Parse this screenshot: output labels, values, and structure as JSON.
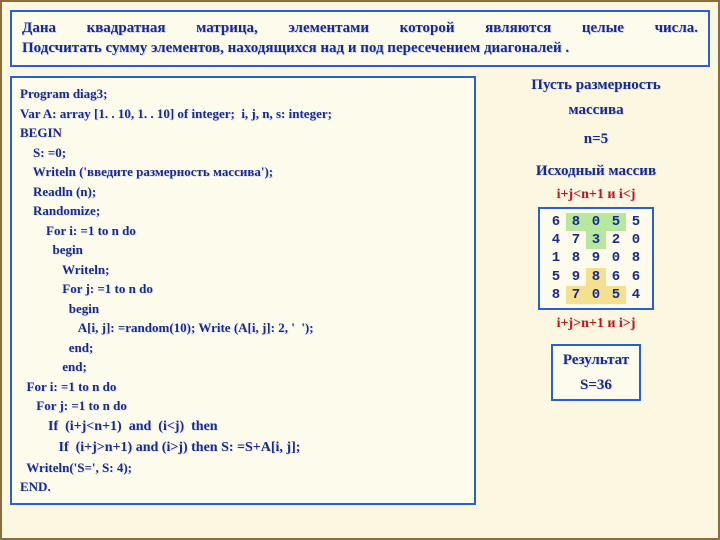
{
  "task": {
    "line1": "Дана квадратная матрица, элементами которой являются целые числа.",
    "line2": "Подсчитать сумму элементов, находящихся над и под пересечением диагоналей ."
  },
  "code": {
    "l1": "Program diag3;",
    "l2": "Var A: array [1. . 10, 1. . 10] of integer;  i, j, n, s: integer;",
    "l3": "BEGIN",
    "l4": "    S: =0;",
    "l5": "    Writeln ('введите размерность массива');",
    "l6": "    Readln (n);",
    "l7": "    Randomize;",
    "l8": "        For i: =1 to n do",
    "l9": "          begin",
    "l10": "             Writeln;",
    "l11": "             For j: =1 to n do",
    "l12": "               begin",
    "l13": "                  A[i, j]: =random(10); Write (A[i, j]: 2, '  ');",
    "l14": "               end;",
    "l15": "             end;",
    "l16": "  For i: =1 to n do",
    "l17": "     For j: =1 to n do",
    "l18": "        If  (i+j<n+1)  and  (i<j)  then",
    "l19": "           If  (i+j>n+1) and (i>j) then S: =S+A[i, j];",
    "l20": "  Writeln('S=', S: 4);",
    "l21": "END."
  },
  "side": {
    "dim1": "Пусть размерность",
    "dim2": "массива",
    "n": "n=5",
    "arr_label": "Исходный массив",
    "cond_top": "i+j<n+1 и i<j",
    "cond_bot": "i+j>n+1 и i>j",
    "result_label": "Результат",
    "result_value": "S=36"
  },
  "matrix": {
    "rows": [
      [
        {
          "v": "6",
          "h": ""
        },
        {
          "v": "8",
          "h": "top"
        },
        {
          "v": "0",
          "h": "top"
        },
        {
          "v": "5",
          "h": "top"
        },
        {
          "v": "5",
          "h": ""
        }
      ],
      [
        {
          "v": "4",
          "h": ""
        },
        {
          "v": "7",
          "h": ""
        },
        {
          "v": "3",
          "h": "top"
        },
        {
          "v": "2",
          "h": ""
        },
        {
          "v": "0",
          "h": ""
        }
      ],
      [
        {
          "v": "1",
          "h": ""
        },
        {
          "v": "8",
          "h": ""
        },
        {
          "v": "9",
          "h": ""
        },
        {
          "v": "0",
          "h": ""
        },
        {
          "v": "8",
          "h": ""
        }
      ],
      [
        {
          "v": "5",
          "h": ""
        },
        {
          "v": "9",
          "h": ""
        },
        {
          "v": "8",
          "h": "bot"
        },
        {
          "v": "6",
          "h": ""
        },
        {
          "v": "6",
          "h": ""
        }
      ],
      [
        {
          "v": "8",
          "h": ""
        },
        {
          "v": "7",
          "h": "bot"
        },
        {
          "v": "0",
          "h": "bot"
        },
        {
          "v": "5",
          "h": "bot"
        },
        {
          "v": "4",
          "h": ""
        }
      ]
    ]
  },
  "colors": {
    "border": "#2a5fd4",
    "text": "#1a2a8a",
    "highlight_top": "#b8e8a0",
    "highlight_bot": "#f5e090",
    "background": "#fbf7e0",
    "cond_text": "#b02020"
  }
}
